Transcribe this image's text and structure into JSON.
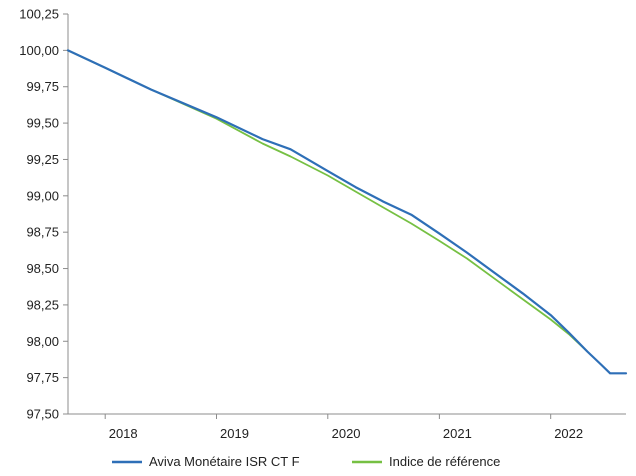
{
  "chart_data": {
    "type": "line",
    "title": "",
    "xlabel": "",
    "ylabel": "",
    "ylim": [
      97.5,
      100.25
    ],
    "xlim": [
      "2017-09-01",
      "2022-09-05"
    ],
    "y_ticks": [
      "97,50",
      "97,75",
      "98,00",
      "98,25",
      "98,50",
      "98,75",
      "99,00",
      "99,25",
      "99,50",
      "99,75",
      "100,00",
      "100,25"
    ],
    "y_tick_values": [
      97.5,
      97.75,
      98.0,
      98.25,
      98.5,
      98.75,
      99.0,
      99.25,
      99.5,
      99.75,
      100.0,
      100.25
    ],
    "x_ticks": [
      "2018",
      "2019",
      "2020",
      "2021",
      "2022"
    ],
    "x_tick_dates": [
      "2018-03-01",
      "2019-03-01",
      "2020-03-01",
      "2021-03-01",
      "2022-03-01"
    ],
    "grid": false,
    "legend_position": "bottom",
    "series": [
      {
        "name": "Aviva Monétaire ISR CT F",
        "color": "#2e6fb7",
        "x": [
          "2017-09-01",
          "2018-01-01",
          "2018-06-01",
          "2019-01-01",
          "2019-06-01",
          "2019-09-01",
          "2020-01-01",
          "2020-04-01",
          "2020-07-01",
          "2020-10-01",
          "2021-01-01",
          "2021-04-01",
          "2021-07-01",
          "2021-10-01",
          "2022-01-01",
          "2022-03-01",
          "2022-05-01",
          "2022-06-15",
          "2022-07-15",
          "2022-09-05"
        ],
        "values": [
          100.0,
          99.88,
          99.73,
          99.54,
          99.39,
          99.32,
          99.17,
          99.06,
          98.96,
          98.87,
          98.74,
          98.61,
          98.47,
          98.33,
          98.18,
          98.06,
          97.93,
          97.84,
          97.78,
          97.78
        ]
      },
      {
        "name": "Indice de référence",
        "color": "#76c043",
        "x": [
          "2017-09-01",
          "2018-01-01",
          "2018-06-01",
          "2019-01-01",
          "2019-06-01",
          "2019-09-01",
          "2020-01-01",
          "2020-04-01",
          "2020-07-01",
          "2020-10-01",
          "2021-01-01",
          "2021-04-01",
          "2021-07-01",
          "2021-10-01",
          "2022-01-01",
          "2022-03-01",
          "2022-05-01"
        ],
        "values": [
          100.0,
          99.88,
          99.73,
          99.53,
          99.36,
          99.27,
          99.14,
          99.03,
          98.92,
          98.81,
          98.69,
          98.57,
          98.43,
          98.29,
          98.15,
          98.05,
          97.93
        ]
      }
    ]
  }
}
